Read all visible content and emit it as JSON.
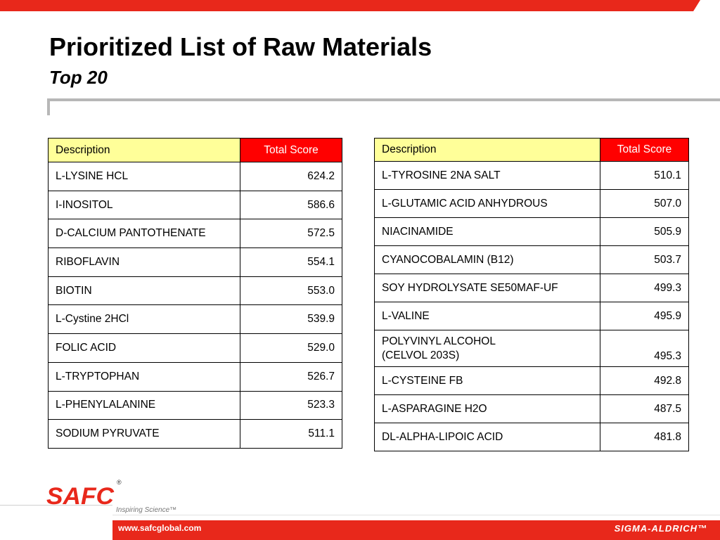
{
  "header": {
    "title": "Prioritized List of Raw Materials",
    "subtitle": "Top 20"
  },
  "columns": {
    "description": "Description",
    "score": "Total Score"
  },
  "left_table": [
    {
      "description": "L-LYSINE HCL",
      "score": "624.2"
    },
    {
      "description": "I-INOSITOL",
      "score": "586.6"
    },
    {
      "description": "D-CALCIUM PANTOTHENATE",
      "score": "572.5"
    },
    {
      "description": "RIBOFLAVIN",
      "score": "554.1"
    },
    {
      "description": "BIOTIN",
      "score": "553.0"
    },
    {
      "description": "L-Cystine 2HCl",
      "score": "539.9"
    },
    {
      "description": "FOLIC ACID",
      "score": "529.0"
    },
    {
      "description": "L-TRYPTOPHAN",
      "score": "526.7"
    },
    {
      "description": "L-PHENYLALANINE",
      "score": "523.3"
    },
    {
      "description": "SODIUM PYRUVATE",
      "score": "511.1"
    }
  ],
  "right_table": [
    {
      "description": "L-TYROSINE 2NA SALT",
      "score": "510.1"
    },
    {
      "description": "L-GLUTAMIC ACID ANHYDROUS",
      "score": "507.0"
    },
    {
      "description": "NIACINAMIDE",
      "score": "505.9"
    },
    {
      "description": "CYANOCOBALAMIN (B12)",
      "score": "503.7"
    },
    {
      "description": "SOY HYDROLYSATE SE50MAF-UF",
      "score": "499.3"
    },
    {
      "description": "L-VALINE",
      "score": "495.9"
    },
    {
      "description": "POLYVINYL ALCOHOL\n(CELVOL 203S)",
      "score": "495.3"
    },
    {
      "description": "L-CYSTEINE FB",
      "score": "492.8"
    },
    {
      "description": "L-ASPARAGINE H2O",
      "score": "487.5"
    },
    {
      "description": "DL-ALPHA-LIPOIC ACID",
      "score": "481.8"
    }
  ],
  "footer": {
    "logo_text": "SAFC",
    "registered": "®",
    "tagline": "Inspiring Science™",
    "url": "www.safcglobal.com",
    "brand": "SIGMA-ALDRICH™"
  },
  "colors": {
    "accent_red": "#e8281b",
    "header_yellow": "#ffff99",
    "header_red": "#ff0000",
    "rule_gray": "#b7b7b7"
  },
  "icons": {
    "logo": "safc-logo"
  }
}
